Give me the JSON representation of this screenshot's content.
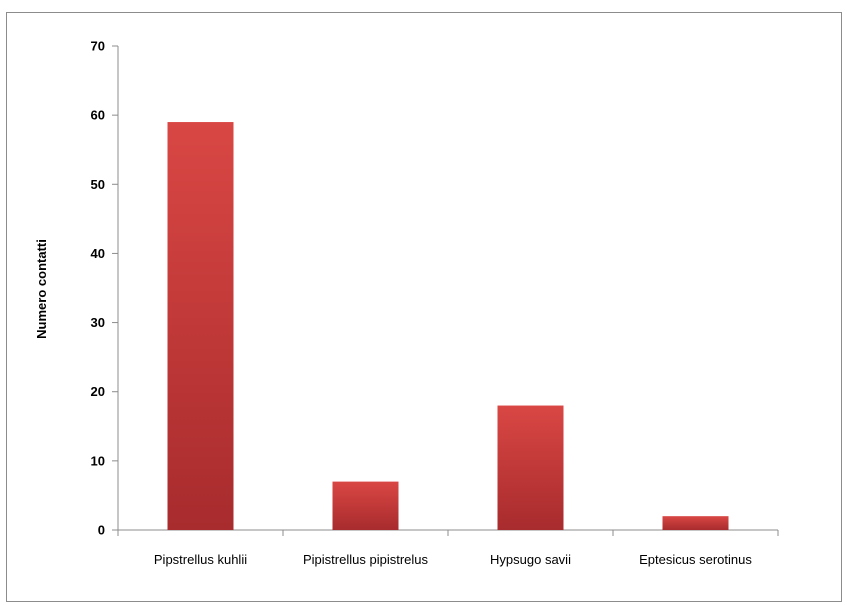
{
  "chart_data": {
    "type": "bar",
    "title": "",
    "xlabel": "",
    "ylabel": "Numero contatti",
    "categories": [
      "Pipstrellus kuhlii",
      "Pipistrellus pipistrelus",
      "Hypsugo savii",
      "Eptesicus serotinus"
    ],
    "values": [
      59,
      7,
      18,
      2
    ],
    "ylim": [
      0,
      70
    ],
    "yticks": [
      0,
      10,
      20,
      30,
      40,
      50,
      60,
      70
    ],
    "grid": false,
    "legend": "none",
    "bar_color": "#c0393b"
  }
}
